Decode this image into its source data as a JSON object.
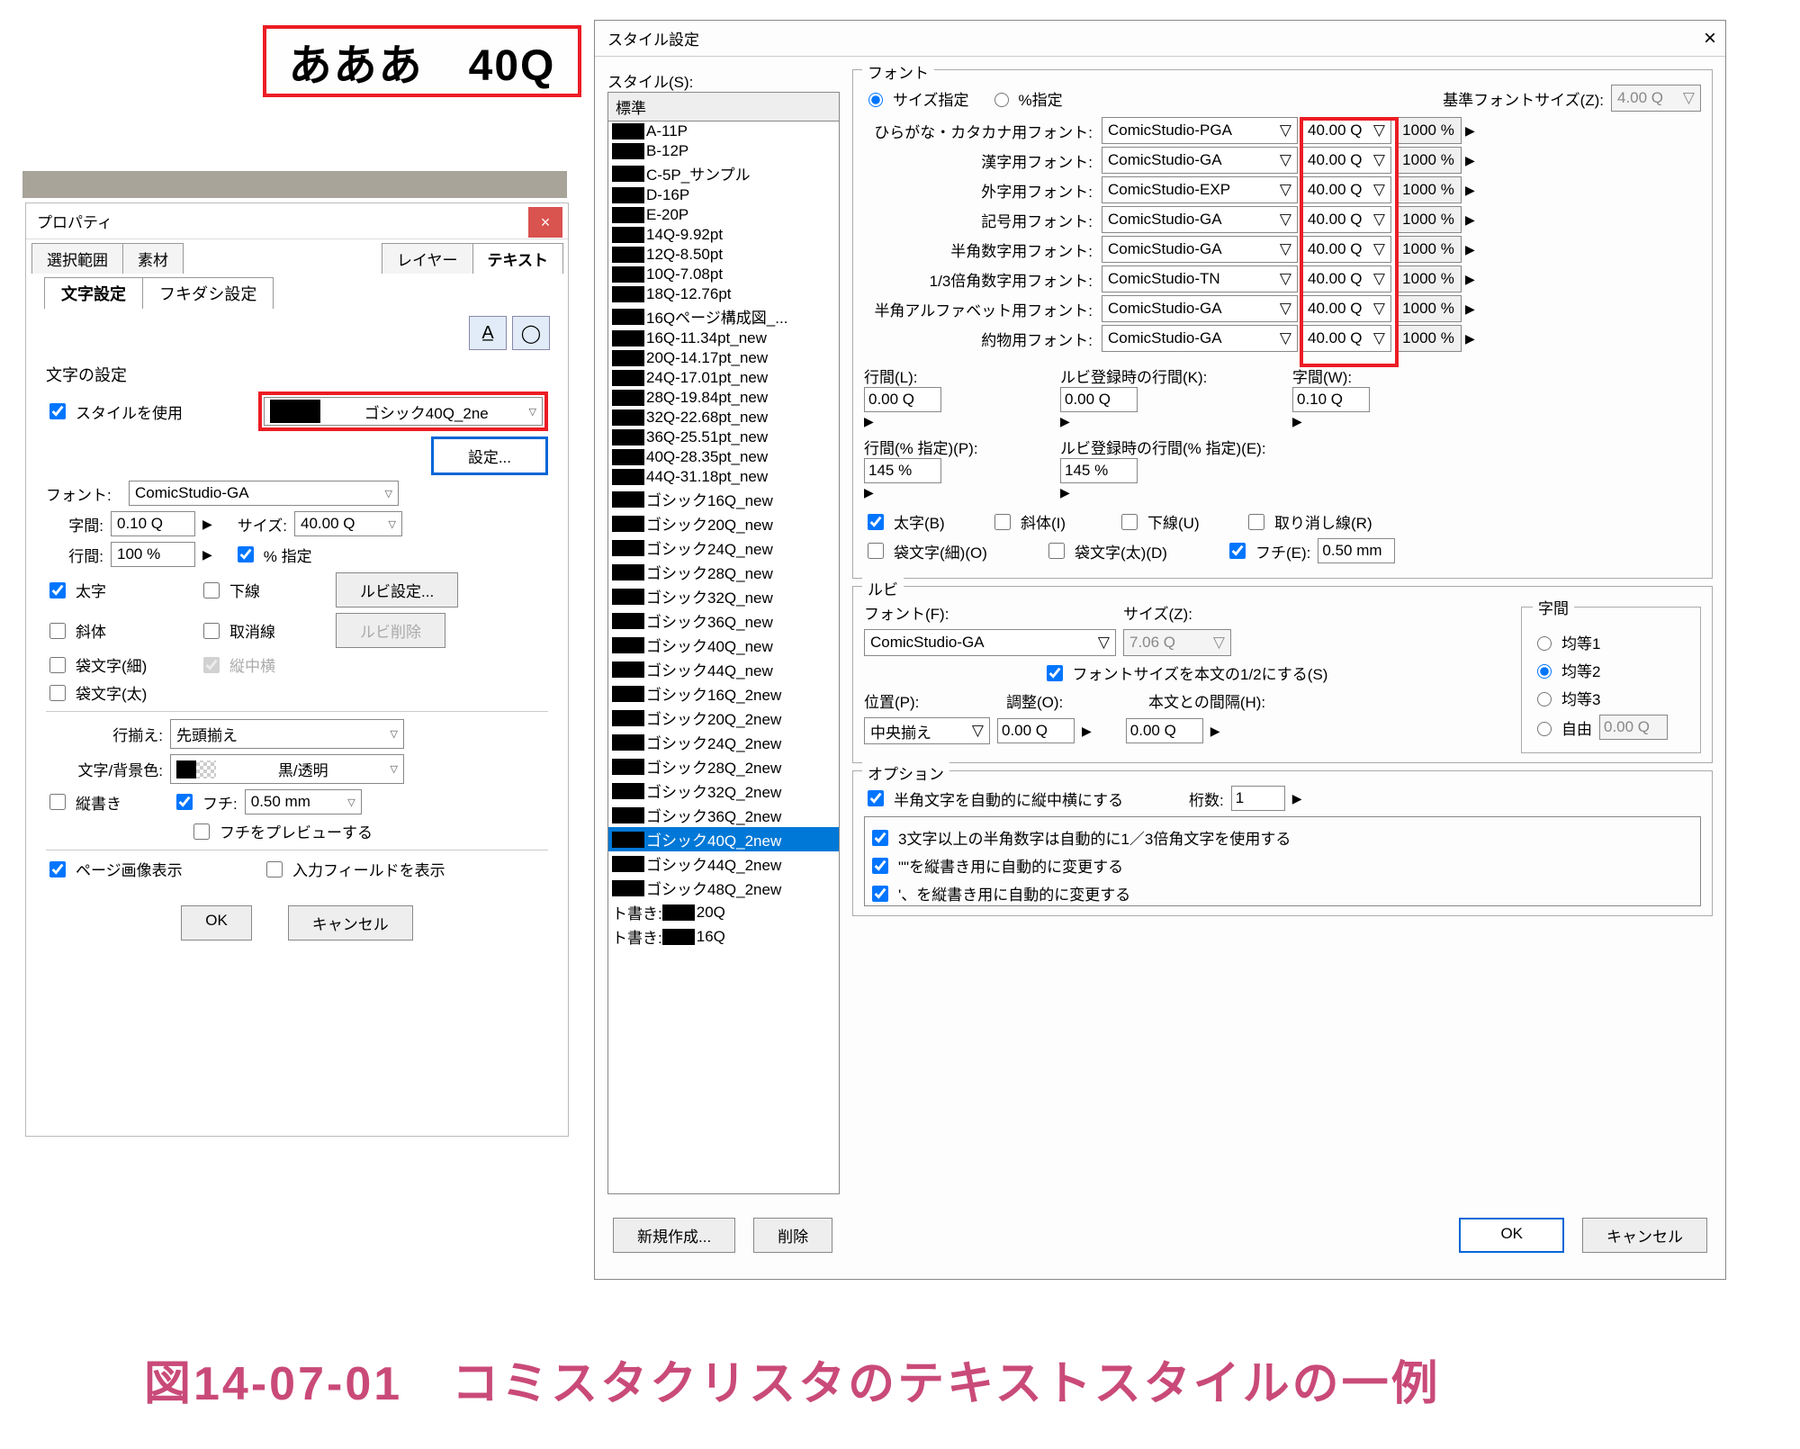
{
  "preview_text": "あああ　40Q",
  "caption": "図14-07-01　コミスタクリスタのテキストスタイルの一例",
  "prop": {
    "title": "プロパティ",
    "tabs": [
      "選択範囲",
      "素材",
      "レイヤー",
      "テキスト"
    ],
    "tabs2": [
      "文字設定",
      "フキダシ設定"
    ],
    "char_settings_label": "文字の設定",
    "use_style": "スタイルを使用",
    "style_value": "ゴシック40Q_2ne",
    "settings_btn": "設定...",
    "font_label": "フォント:",
    "font_value": "ComicStudio-GA",
    "jikan_label": "字間:",
    "jikan_value": "0.10 Q",
    "size_label": "サイズ:",
    "size_value": "40.00 Q",
    "gyokan_label": "行間:",
    "gyokan_value": "100 %",
    "pct_spec": "% 指定",
    "bold": "太字",
    "underline": "下線",
    "ruby_set": "ルビ設定...",
    "italic": "斜体",
    "strike": "取消線",
    "ruby_del": "ルビ削除",
    "fukuro_thin": "袋文字(細)",
    "tatechu": "縦中横",
    "fukuro_thick": "袋文字(太)",
    "align_label": "行揃え:",
    "align_value": "先頭揃え",
    "color_label": "文字/背景色:",
    "color_value": "黒/透明",
    "vertical": "縦書き",
    "fuchi": "フチ:",
    "fuchi_value": "0.50 mm",
    "fuchi_preview": "フチをプレビューする",
    "page_img": "ページ画像表示",
    "input_field": "入力フィールドを表示",
    "ok": "OK",
    "cancel": "キャンセル"
  },
  "dlg": {
    "title": "スタイル設定",
    "style_label": "スタイル(S):",
    "list_header": "標準",
    "items": [
      "A-11P",
      "B-12P",
      "C-5P_サンプル",
      "D-16P",
      "E-20P",
      "14Q-9.92pt",
      "12Q-8.50pt",
      "10Q-7.08pt",
      "18Q-12.76pt",
      "16Qページ構成図_...",
      "16Q-11.34pt_new",
      "20Q-14.17pt_new",
      "24Q-17.01pt_new",
      "28Q-19.84pt_new",
      "32Q-22.68pt_new",
      "36Q-25.51pt_new",
      "40Q-28.35pt_new",
      "44Q-31.18pt_new",
      "ゴシック16Q_new",
      "ゴシック20Q_new",
      "ゴシック24Q_new",
      "ゴシック28Q_new",
      "ゴシック32Q_new",
      "ゴシック36Q_new",
      "ゴシック40Q_new",
      "ゴシック44Q_new",
      "ゴシック16Q_2new",
      "ゴシック20Q_2new",
      "ゴシック24Q_2new",
      "ゴシック28Q_2new",
      "ゴシック32Q_2new",
      "ゴシック36Q_2new",
      "ゴシック40Q_2new",
      "ゴシック44Q_2new",
      "ゴシック48Q_2new"
    ],
    "item_tail1": "ト書き:",
    "item_tail1v": "20Q",
    "item_tail2": "ト書き:",
    "item_tail2v": "16Q",
    "new_btn": "新規作成...",
    "del_btn": "削除",
    "font_grp": "フォント",
    "size_spec": "サイズ指定",
    "pct_spec": "%指定",
    "base_size": "基準フォントサイズ(Z):",
    "base_size_v": "4.00 Q",
    "rows": [
      {
        "label": "ひらがな・カタカナ用フォント:",
        "font": "ComicStudio-PGA",
        "size": "40.00 Q",
        "pct": "1000 %"
      },
      {
        "label": "漢字用フォント:",
        "font": "ComicStudio-GA",
        "size": "40.00 Q",
        "pct": "1000 %"
      },
      {
        "label": "外字用フォント:",
        "font": "ComicStudio-EXP",
        "size": "40.00 Q",
        "pct": "1000 %"
      },
      {
        "label": "記号用フォント:",
        "font": "ComicStudio-GA",
        "size": "40.00 Q",
        "pct": "1000 %"
      },
      {
        "label": "半角数字用フォント:",
        "font": "ComicStudio-GA",
        "size": "40.00 Q",
        "pct": "1000 %"
      },
      {
        "label": "1/3倍角数字用フォント:",
        "font": "ComicStudio-TN",
        "size": "40.00 Q",
        "pct": "1000 %"
      },
      {
        "label": "半角アルファベット用フォント:",
        "font": "ComicStudio-GA",
        "size": "40.00 Q",
        "pct": "1000 %"
      },
      {
        "label": "約物用フォント:",
        "font": "ComicStudio-GA",
        "size": "40.00 Q",
        "pct": "1000 %"
      }
    ],
    "gyokan_L": "行間(L):",
    "gyokan_Lv": "0.00 Q",
    "ruby_K": "ルビ登録時の行間(K):",
    "ruby_Kv": "0.00 Q",
    "jikan_W": "字間(W):",
    "jikan_Wv": "0.10 Q",
    "gyokan_P": "行間(% 指定)(P):",
    "gyokan_Pv": "145 %",
    "ruby_E": "ルビ登録時の行間(% 指定)(E):",
    "ruby_Ev": "145 %",
    "bold": "太字(B)",
    "italic": "斜体(I)",
    "underline": "下線(U)",
    "strike": "取り消し線(R)",
    "fukuro_thin": "袋文字(細)(O)",
    "fukuro_thick": "袋文字(太)(D)",
    "fuchi": "フチ(E):",
    "fuchi_v": "0.50 mm",
    "ruby_grp": "ルビ",
    "ruby_font": "フォント(F):",
    "ruby_font_v": "ComicStudio-GA",
    "ruby_size": "サイズ(Z):",
    "ruby_size_v": "7.06 Q",
    "ruby_half": "フォントサイズを本文の1/2にする(S)",
    "ruby_pos": "位置(P):",
    "ruby_pos_v": "中央揃え",
    "ruby_adj": "調整(O):",
    "ruby_adj_v": "0.00 Q",
    "ruby_gap": "本文との間隔(H):",
    "ruby_gap_v": "0.00 Q",
    "jikan_grp": "字間",
    "k1": "均等1",
    "k2": "均等2",
    "k3": "均等3",
    "free": "自由",
    "free_v": "0.00 Q",
    "opt_grp": "オプション",
    "opt_tatechu": "半角文字を自動的に縦中横にする",
    "opt_keta": "桁数:",
    "opt_keta_v": "1",
    "opt1": "3文字以上の半角数字は自動的に1／3倍角文字を使用する",
    "opt2": "\"\"を縦書き用に自動的に変更する",
    "opt3": "'、を縦書き用に自動的に変更する",
    "ok": "OK",
    "cancel": "キャンセル"
  }
}
